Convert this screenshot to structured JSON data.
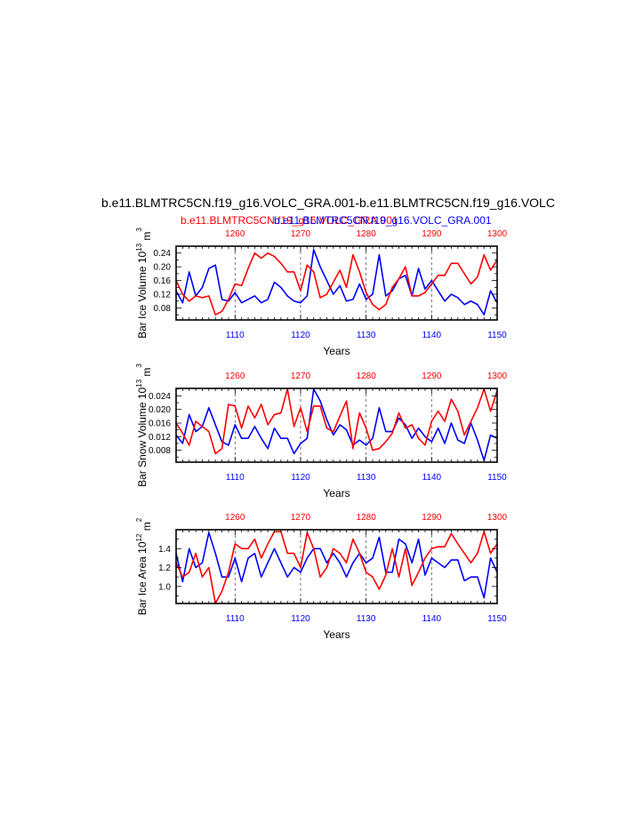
{
  "title": "b.e11.BLMTRC5CN.f19_g16.VOLC_GRA.001-b.e11.BLMTRC5CN.f19_g16.VOLC",
  "legend": {
    "red": "b.e11.BLMTRC5CN.f19_g16.VOLC_GRA.001",
    "blue": "b.e11.BLMTRC5CN.f19_g16.VOLC_GRA.001"
  },
  "colors": {
    "red": "#ff0000",
    "blue": "#0000ff",
    "axis": "#000000",
    "grid": "#555555"
  },
  "chart_data": [
    {
      "type": "line",
      "ylabel": "Bar Ice Volume",
      "units": {
        "base": "10",
        "exp": "13",
        "unit": "m",
        "unit_exp": "3"
      },
      "xlabel": "Years",
      "ylim": [
        0.045,
        0.26
      ],
      "yticks": [
        "0.08",
        "0.12",
        "0.16",
        "0.20",
        "0.24"
      ],
      "yticks_values": [
        0.08,
        0.12,
        0.16,
        0.2,
        0.24
      ],
      "bottom_axis": {
        "range": [
          1101,
          1150
        ],
        "ticks": [
          "1110",
          "1120",
          "1130",
          "1140",
          "1150"
        ],
        "color": "blue"
      },
      "top_axis": {
        "range": [
          1251,
          1300
        ],
        "ticks": [
          "1260",
          "1270",
          "1280",
          "1290",
          "1300"
        ],
        "color": "red"
      },
      "vlines": [
        1110,
        1120,
        1130,
        1140
      ],
      "series": [
        {
          "color": "blue",
          "values": [
            0.13,
            0.095,
            0.185,
            0.115,
            0.14,
            0.195,
            0.205,
            0.105,
            0.1,
            0.125,
            0.095,
            0.105,
            0.115,
            0.095,
            0.105,
            0.155,
            0.14,
            0.115,
            0.1,
            0.095,
            0.115,
            0.25,
            0.2,
            0.16,
            0.12,
            0.145,
            0.1,
            0.105,
            0.15,
            0.105,
            0.12,
            0.235,
            0.115,
            0.13,
            0.165,
            0.175,
            0.115,
            0.195,
            0.135,
            0.16,
            0.13,
            0.1,
            0.12,
            0.11,
            0.09,
            0.1,
            0.09,
            0.06,
            0.13,
            0.095
          ]
        },
        {
          "color": "red",
          "values": [
            0.16,
            0.12,
            0.1,
            0.115,
            0.11,
            0.115,
            0.06,
            0.07,
            0.105,
            0.15,
            0.145,
            0.195,
            0.24,
            0.225,
            0.24,
            0.23,
            0.21,
            0.185,
            0.185,
            0.13,
            0.205,
            0.185,
            0.11,
            0.12,
            0.155,
            0.19,
            0.14,
            0.235,
            0.185,
            0.125,
            0.09,
            0.075,
            0.09,
            0.14,
            0.165,
            0.2,
            0.115,
            0.115,
            0.125,
            0.15,
            0.175,
            0.175,
            0.21,
            0.21,
            0.18,
            0.15,
            0.17,
            0.235,
            0.19,
            0.22
          ]
        }
      ]
    },
    {
      "type": "line",
      "ylabel": "Bar Snow Volume",
      "units": {
        "base": "10",
        "exp": "13",
        "unit": "m",
        "unit_exp": "3"
      },
      "xlabel": "Years",
      "ylim": [
        0.0045,
        0.0262
      ],
      "yticks": [
        "0.008",
        "0.012",
        "0.016",
        "0.020",
        "0.024"
      ],
      "yticks_values": [
        0.008,
        0.012,
        0.016,
        0.02,
        0.024
      ],
      "bottom_axis": {
        "range": [
          1101,
          1150
        ],
        "ticks": [
          "1110",
          "1120",
          "1130",
          "1140",
          "1150"
        ],
        "color": "blue"
      },
      "top_axis": {
        "range": [
          1251,
          1300
        ],
        "ticks": [
          "1260",
          "1270",
          "1280",
          "1290",
          "1300"
        ],
        "color": "red"
      },
      "vlines": [
        1110,
        1120,
        1130,
        1140
      ],
      "series": [
        {
          "color": "blue",
          "values": [
            0.0125,
            0.01,
            0.0185,
            0.0135,
            0.015,
            0.0205,
            0.0155,
            0.0105,
            0.0095,
            0.0155,
            0.0115,
            0.0115,
            0.015,
            0.0115,
            0.0085,
            0.0145,
            0.0115,
            0.0115,
            0.007,
            0.01,
            0.0115,
            0.026,
            0.0225,
            0.017,
            0.0125,
            0.0155,
            0.014,
            0.0095,
            0.011,
            0.0095,
            0.0115,
            0.0205,
            0.0135,
            0.0135,
            0.0175,
            0.0155,
            0.0115,
            0.0145,
            0.012,
            0.0105,
            0.0145,
            0.01,
            0.016,
            0.011,
            0.01,
            0.016,
            0.011,
            0.005,
            0.0125,
            0.0115
          ]
        },
        {
          "color": "red",
          "values": [
            0.016,
            0.013,
            0.0095,
            0.0165,
            0.015,
            0.0135,
            0.007,
            0.0085,
            0.0215,
            0.021,
            0.0145,
            0.021,
            0.0175,
            0.0215,
            0.0155,
            0.0185,
            0.019,
            0.026,
            0.015,
            0.0205,
            0.0135,
            0.021,
            0.021,
            0.0145,
            0.0135,
            0.018,
            0.0225,
            0.0085,
            0.019,
            0.0145,
            0.008,
            0.0085,
            0.0105,
            0.013,
            0.019,
            0.0145,
            0.0155,
            0.0115,
            0.0095,
            0.0165,
            0.0195,
            0.0165,
            0.023,
            0.0195,
            0.0125,
            0.0165,
            0.0205,
            0.026,
            0.0195,
            0.0255
          ]
        }
      ]
    },
    {
      "type": "line",
      "ylabel": "Bar Ice Area",
      "units": {
        "base": "10",
        "exp": "12",
        "unit": "m",
        "unit_exp": "2"
      },
      "xlabel": "Years",
      "ylim": [
        0.82,
        1.6
      ],
      "yticks": [
        "1.0",
        "1.2",
        "1.4"
      ],
      "yticks_values": [
        1.0,
        1.2,
        1.4
      ],
      "bottom_axis": {
        "range": [
          1101,
          1150
        ],
        "ticks": [
          "1110",
          "1120",
          "1130",
          "1140",
          "1150"
        ],
        "color": "blue"
      },
      "top_axis": {
        "range": [
          1251,
          1300
        ],
        "ticks": [
          "1260",
          "1270",
          "1280",
          "1290",
          "1300"
        ],
        "color": "red"
      },
      "vlines": [
        1110,
        1120,
        1130,
        1140
      ],
      "series": [
        {
          "color": "blue",
          "values": [
            1.35,
            1.05,
            1.4,
            1.2,
            1.25,
            1.57,
            1.35,
            1.1,
            1.1,
            1.3,
            1.05,
            1.3,
            1.35,
            1.1,
            1.25,
            1.4,
            1.25,
            1.1,
            1.2,
            1.15,
            1.3,
            1.4,
            1.4,
            1.25,
            1.35,
            1.25,
            1.1,
            1.25,
            1.35,
            1.25,
            1.3,
            1.52,
            1.15,
            1.15,
            1.5,
            1.45,
            1.25,
            1.5,
            1.12,
            1.3,
            1.25,
            1.2,
            1.28,
            1.28,
            1.06,
            1.1,
            1.1,
            0.88,
            1.3,
            1.15
          ]
        },
        {
          "color": "red",
          "values": [
            1.25,
            1.1,
            1.15,
            1.35,
            1.1,
            1.2,
            0.82,
            0.95,
            1.15,
            1.45,
            1.4,
            1.4,
            1.5,
            1.3,
            1.45,
            1.58,
            1.58,
            1.35,
            1.35,
            1.2,
            1.57,
            1.4,
            1.1,
            1.2,
            1.4,
            1.35,
            1.25,
            1.5,
            1.35,
            1.15,
            1.1,
            0.97,
            1.12,
            1.4,
            1.1,
            1.4,
            1.01,
            1.15,
            1.3,
            1.4,
            1.42,
            1.42,
            1.56,
            1.45,
            1.35,
            1.25,
            1.35,
            1.58,
            1.35,
            1.45
          ]
        }
      ]
    }
  ]
}
